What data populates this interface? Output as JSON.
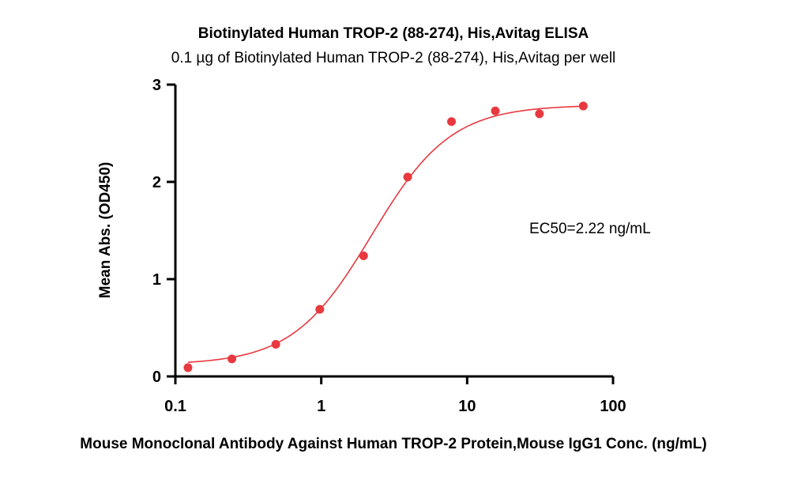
{
  "chart_data": {
    "type": "scatter",
    "title": "Biotinylated Human TROP-2 (88-274), His,Avitag ELISA",
    "subtitle": "0.1 µg of Biotinylated Human TROP-2 (88-274), His,Avitag per well",
    "xlabel": "Mouse Monoclonal Antibody Against Human TROP-2 Protein,Mouse IgG1 Conc. (ng/mL)",
    "ylabel": "Mean Abs. (OD450)",
    "x_scale": "log",
    "xlim": [
      0.1,
      100
    ],
    "ylim": [
      0,
      3
    ],
    "x_ticks": [
      "0.1",
      "1",
      "10",
      "100"
    ],
    "y_ticks": [
      "0",
      "1",
      "2",
      "3"
    ],
    "grid": false,
    "series": [
      {
        "color": "#e8393f",
        "x": [
          0.122,
          0.244,
          0.488,
          0.977,
          1.95,
          3.91,
          7.81,
          15.6,
          31.3,
          62.5
        ],
        "y": [
          0.09,
          0.18,
          0.33,
          0.69,
          1.24,
          2.05,
          2.62,
          2.73,
          2.7,
          2.78
        ]
      }
    ],
    "fit": {
      "model": "4PL",
      "bottom": 0.12,
      "top": 2.79,
      "ec50": 2.22,
      "hill": 1.6
    },
    "annotation": "EC50=2.22 ng/mL"
  }
}
